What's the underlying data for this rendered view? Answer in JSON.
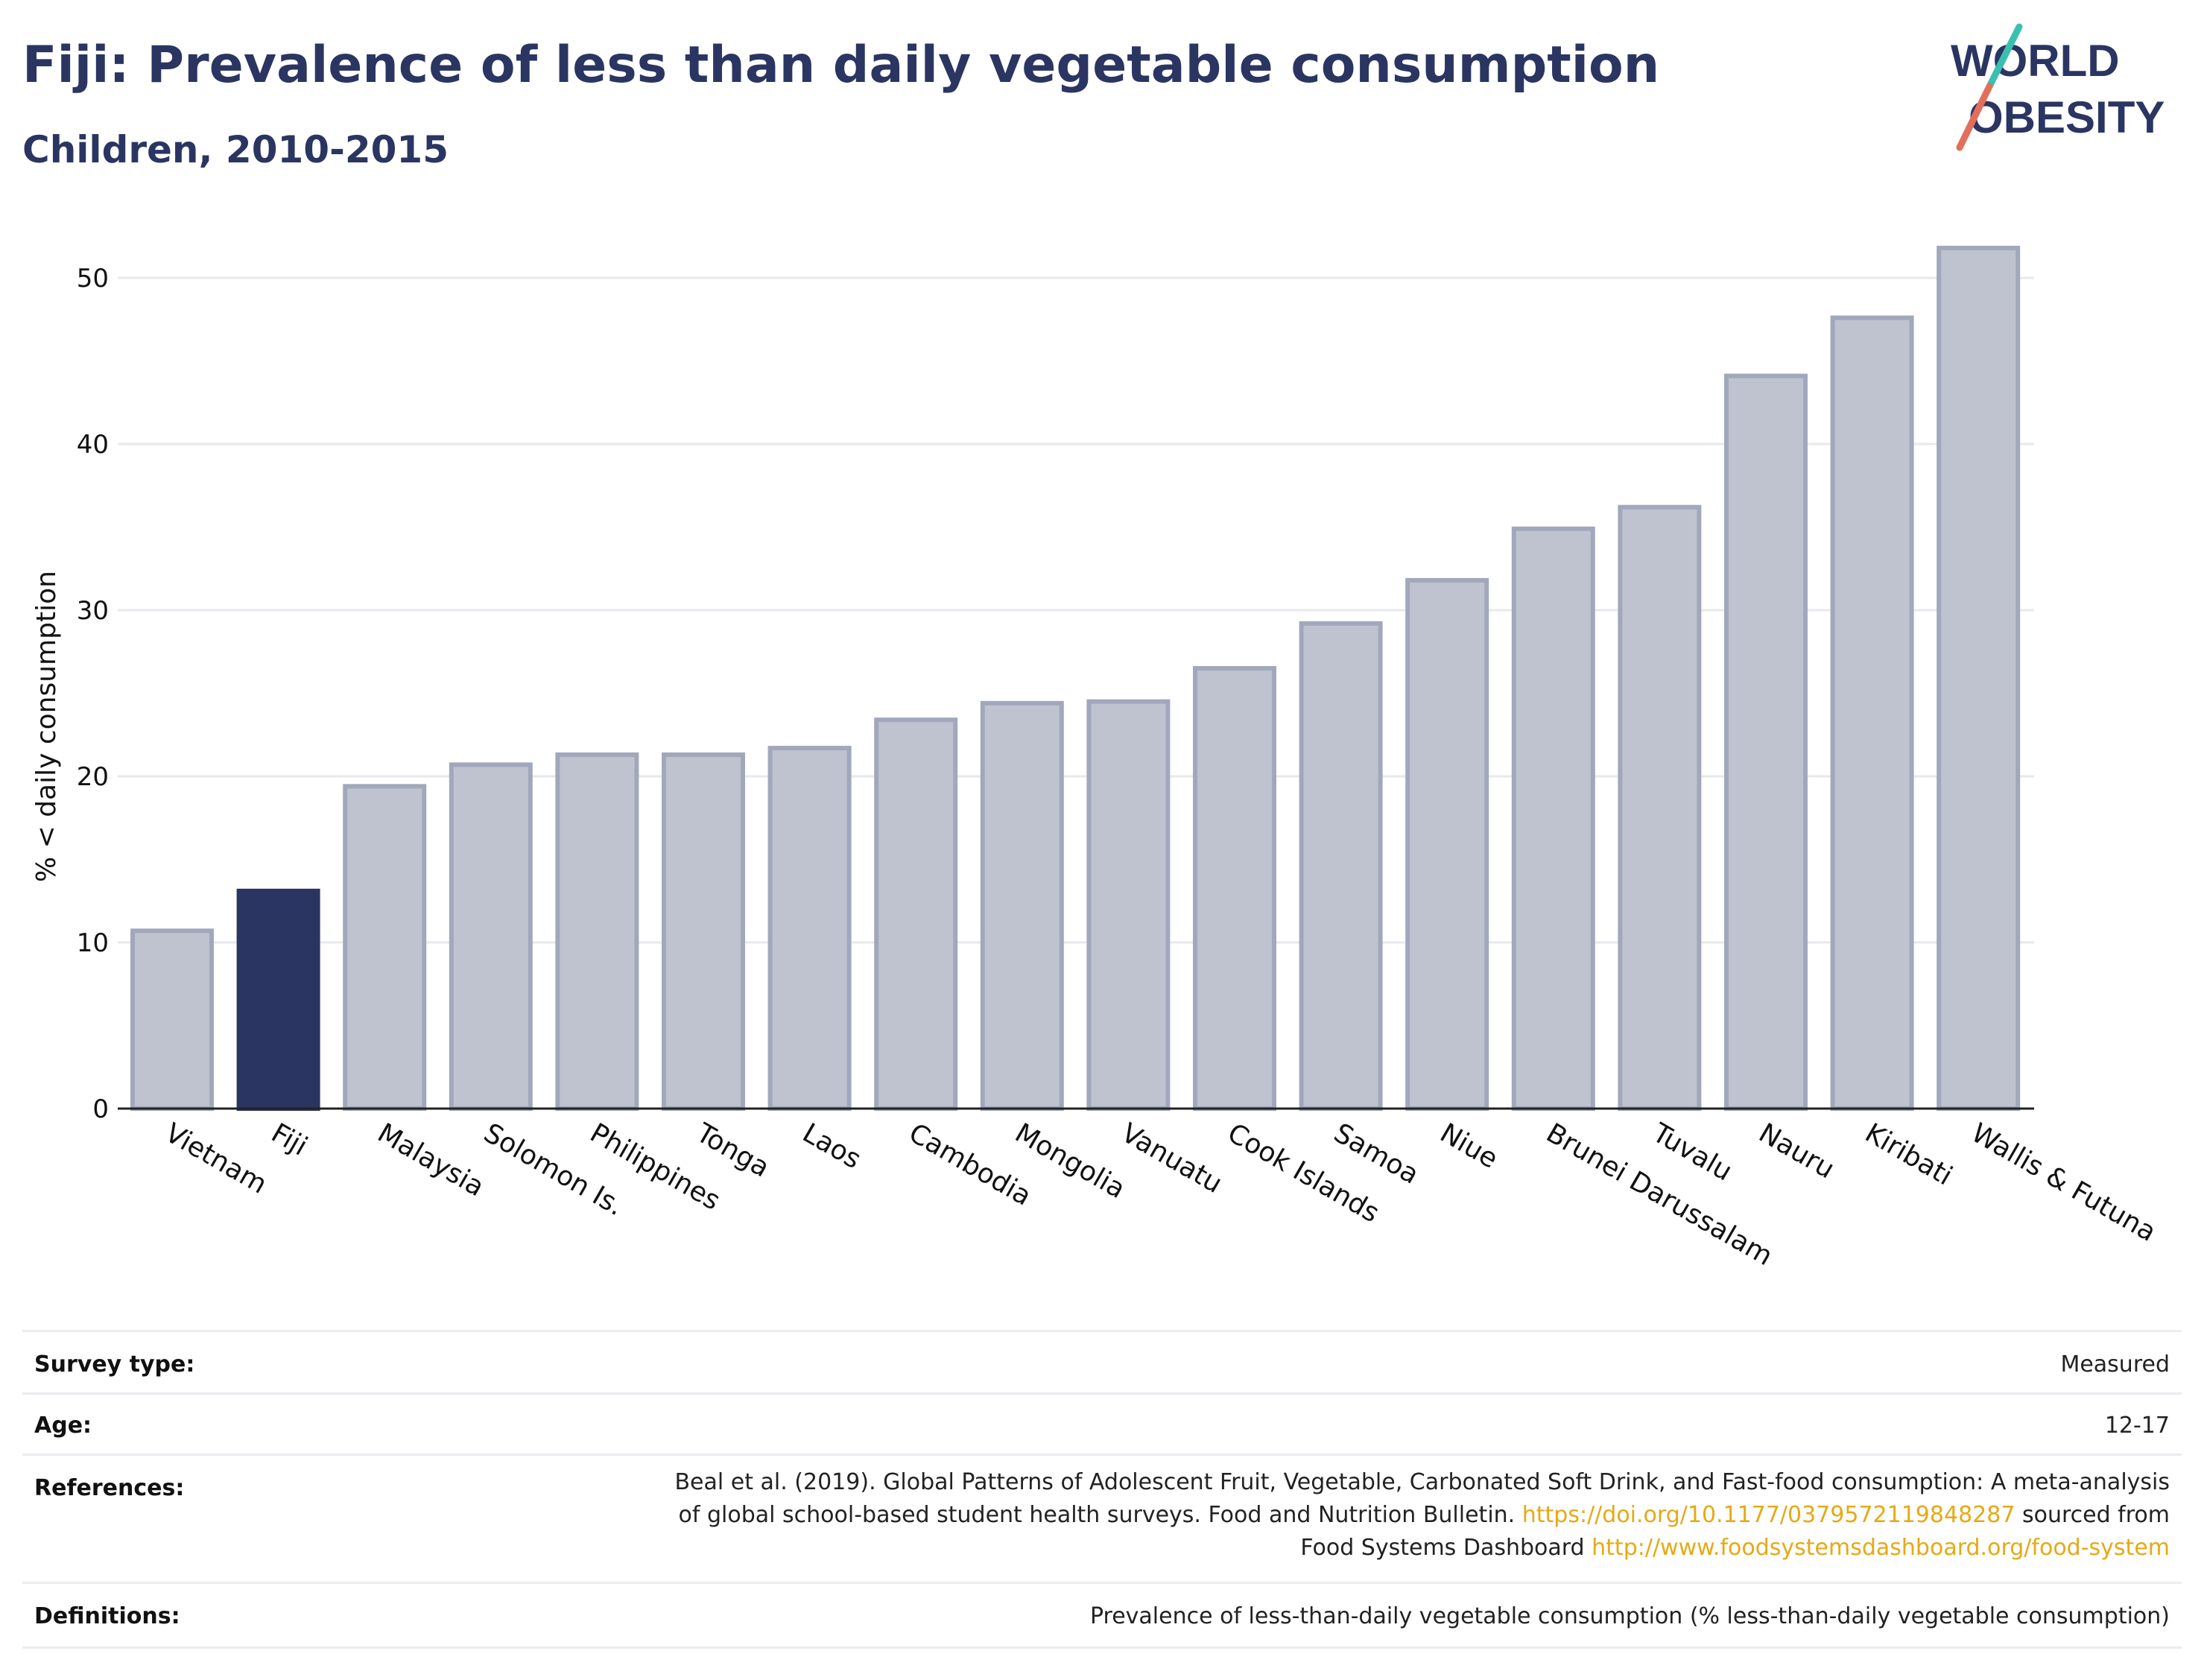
{
  "header": {
    "title": "Fiji: Prevalence of less than daily vegetable consumption",
    "subtitle": "Children, 2010-2015"
  },
  "logo": {
    "line1": "WORLD",
    "line2": "OBESITY"
  },
  "chart_data": {
    "type": "bar",
    "ylabel": "% < daily consumption",
    "xlabel": "",
    "ylim": [
      0,
      53
    ],
    "yticks": [
      0,
      10,
      20,
      30,
      40,
      50
    ],
    "grid": true,
    "categories": [
      "Vietnam",
      "Fiji",
      "Malaysia",
      "Solomon Is.",
      "Philippines",
      "Tonga",
      "Laos",
      "Cambodia",
      "Mongolia",
      "Vanuatu",
      "Cook Islands",
      "Samoa",
      "Niue",
      "Brunei Darussalam",
      "Tuvalu",
      "Nauru",
      "Kiribati",
      "Wallis & Futuna"
    ],
    "values": [
      10.7,
      13.1,
      19.4,
      20.7,
      21.3,
      21.3,
      21.7,
      23.4,
      24.4,
      24.5,
      26.5,
      29.2,
      31.8,
      34.9,
      36.2,
      44.1,
      47.6,
      51.8
    ],
    "highlight": "Fiji",
    "colors": {
      "highlight": "#2b3562",
      "bar_fill": "#bfc3cf",
      "bar_edge": "#a2a8bb"
    }
  },
  "meta": {
    "survey_type": {
      "label": "Survey type:",
      "value": "Measured"
    },
    "age": {
      "label": "Age:",
      "value": "12-17"
    },
    "references": {
      "label": "References:",
      "line1": "Beal et al. (2019). Global Patterns of Adolescent Fruit, Vegetable, Carbonated Soft Drink, and Fast-food consumption: A meta-analysis",
      "line2_text": "of global school-based student health surveys. Food and Nutrition Bulletin.",
      "line2_link": "https://doi.org/10.1177/0379572119848287",
      "line2_after": "sourced from",
      "line3_text": "Food Systems Dashboard",
      "line3_link": "http://www.foodsystemsdashboard.org/food-system"
    },
    "definitions": {
      "label": "Definitions:",
      "value": "Prevalence of less-than-daily vegetable consumption (% less-than-daily vegetable consumption)"
    }
  }
}
